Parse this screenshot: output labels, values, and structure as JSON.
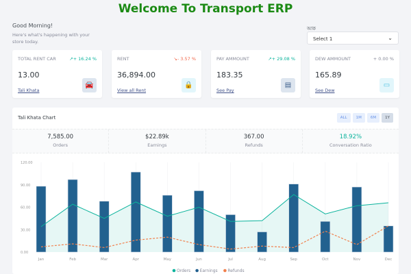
{
  "title": "Welcome To Transport ERP",
  "greeting": "Good Morning!",
  "subtitle": "Here's what's happening with your store today.",
  "select": {
    "label": "আক",
    "value": "Select 1"
  },
  "cards": [
    {
      "label": "TOTAL RENT CAR",
      "change": "↗+ 16.24 %",
      "change_color": "#0ab39c",
      "value": "13.00",
      "link": "Tali Khata",
      "icon": "car-icon",
      "glyph": "🚘",
      "icon_bg": "#dde5ef",
      "icon_color": "#3d5f8c"
    },
    {
      "label": "RENT",
      "change": "↘- 3.57 %",
      "change_color": "#f06548",
      "value": "36,894.00",
      "link": "View all Rent",
      "icon": "shopping-bag-icon",
      "glyph": "🔒",
      "icon_bg": "#e2f6fb",
      "icon_color": "#4fc3e0"
    },
    {
      "label": "PAY AMMOUNT",
      "change": "↗+ 29.08 %",
      "change_color": "#0ab39c",
      "value": "183.35",
      "link": "See Pay",
      "icon": "coins-icon",
      "glyph": "▤",
      "icon_bg": "#dde5ef",
      "icon_color": "#3d5f8c"
    },
    {
      "label": "DEW AMMOUNT",
      "change": "+ 0.00 %",
      "change_color": "#878a99",
      "value": "165.89",
      "link": "See Dew",
      "icon": "wallet-icon",
      "glyph": "▭",
      "icon_bg": "#e2f6fb",
      "icon_color": "#4fc3e0"
    }
  ],
  "panel": {
    "title": "Tali Khata Chart",
    "ranges": [
      "ALL",
      "1M",
      "6M",
      "1Y"
    ],
    "active_range": "1Y"
  },
  "stats": [
    {
      "value": "7,585.00",
      "label": "Orders",
      "color": "#343a40"
    },
    {
      "value": "$22.89k",
      "label": "Earnings",
      "color": "#343a40"
    },
    {
      "value": "367.00",
      "label": "Refunds",
      "color": "#343a40"
    },
    {
      "value": "18.92%",
      "label": "Conversation Ratio",
      "color": "#0ab39c"
    }
  ],
  "chart_data": {
    "type": "bar",
    "categories": [
      "Jan",
      "Feb",
      "Mar",
      "Apr",
      "May",
      "Jun",
      "Jul",
      "Aug",
      "Sep",
      "Oct",
      "Nov",
      "Dec"
    ],
    "ylim": [
      0,
      120
    ],
    "yticks": [
      "0.00",
      "30.00",
      "60.00",
      "90.00",
      "120.00"
    ],
    "legend_position": "bottom",
    "series": [
      {
        "name": "Orders",
        "type": "area",
        "color": "#0ab39c",
        "values": [
          34,
          64,
          45,
          67,
          48,
          60,
          41,
          42,
          77,
          51,
          62,
          66
        ]
      },
      {
        "name": "Earnings",
        "type": "bar",
        "color": "#22618f",
        "values": [
          88,
          97,
          68,
          107,
          76,
          82,
          50,
          27,
          91,
          41,
          87,
          35
        ]
      },
      {
        "name": "Refunds",
        "type": "dashed-line",
        "color": "#f1814e",
        "values": [
          7,
          11,
          6,
          16,
          20,
          10,
          4,
          8,
          6,
          28,
          10,
          35
        ]
      }
    ]
  }
}
